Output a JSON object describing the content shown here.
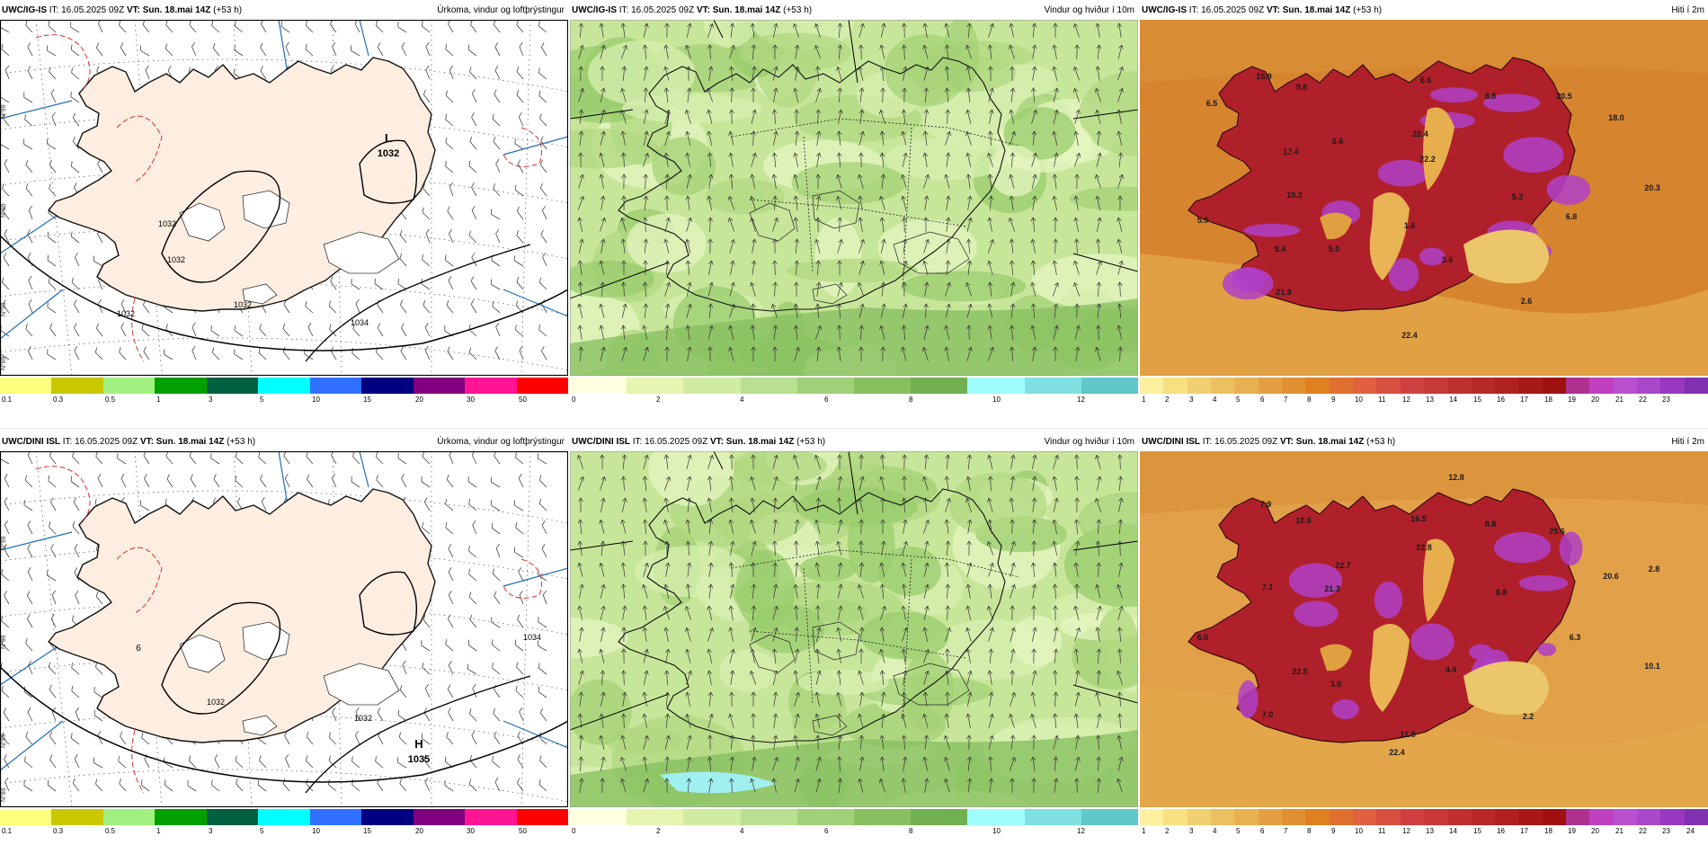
{
  "rows": [
    {
      "panels": [
        {
          "model": "UWC/IG-IS",
          "it": "IT: 16.05.2025 09Z",
          "vt_label": "VT:",
          "vt": "Sun. 18.mai 14Z",
          "lead": "(+53 h)",
          "title": "Úrkoma, vindur og loftþrýstingur",
          "kind": "precip",
          "labels": [
            {
              "t": "L"
            },
            {
              "t": "1032"
            },
            {
              "t": "1032"
            },
            {
              "t": "1032"
            },
            {
              "t": "1032"
            },
            {
              "t": "1034"
            },
            {
              "t": "1032"
            }
          ],
          "edge": [
            "N°99",
            "N°99",
            "N°99",
            "N°89"
          ]
        },
        {
          "model": "UWC/IG-IS",
          "it": "IT: 16.05.2025 09Z",
          "vt_label": "VT:",
          "vt": "Sun. 18.mai 14Z",
          "lead": "(+53 h)",
          "title": "Vindur og hviður í 10m",
          "kind": "wind",
          "labels": []
        },
        {
          "model": "UWC/IG-IS",
          "it": "IT: 16.05.2025 09Z",
          "vt_label": "VT:",
          "vt": "Sun. 18.mai 14Z",
          "lead": "(+53 h)",
          "title": "Hiti í 2m",
          "kind": "temp",
          "labels": [
            {
              "t": "6.5"
            },
            {
              "t": "15.9"
            },
            {
              "t": "9.8"
            },
            {
              "t": "6.6"
            },
            {
              "t": "8.8"
            },
            {
              "t": "20.5"
            },
            {
              "t": "18.0"
            },
            {
              "t": "22.4"
            },
            {
              "t": "6.6"
            },
            {
              "t": "22.2"
            },
            {
              "t": "17.4"
            },
            {
              "t": "15.2"
            },
            {
              "t": "5.3"
            },
            {
              "t": "20.3"
            },
            {
              "t": "5.9"
            },
            {
              "t": "1.6"
            },
            {
              "t": "6.8"
            },
            {
              "t": "8.4"
            },
            {
              "t": "5.0"
            },
            {
              "t": "3.6"
            },
            {
              "t": "21.9"
            },
            {
              "t": "2.6"
            },
            {
              "t": "22.4"
            }
          ]
        }
      ]
    },
    {
      "panels": [
        {
          "model": "UWC/DINI ISL",
          "it": "IT: 16.05.2025 09Z",
          "vt_label": "VT:",
          "vt": "Sun. 18.mai 14Z",
          "lead": "(+53 h)",
          "title": "Úrkoma, vindur og loftþrýstingur",
          "kind": "precip",
          "labels": [
            {
              "t": "H"
            },
            {
              "t": "1035"
            },
            {
              "t": "1032"
            },
            {
              "t": "1034"
            },
            {
              "t": "1032"
            },
            {
              "t": "6"
            }
          ],
          "edge": [
            "N°99",
            "N°99",
            "N°99",
            "N°89"
          ]
        },
        {
          "model": "UWC/DINI ISL",
          "it": "IT: 16.05.2025 09Z",
          "vt_label": "VT:",
          "vt": "Sun. 18.mai 14Z",
          "lead": "(+53 h)",
          "title": "Vindur og hviður í 10m",
          "kind": "wind",
          "labels": []
        },
        {
          "model": "UWC/DINI ISL",
          "it": "IT: 16.05.2025 09Z",
          "vt_label": "VT:",
          "vt": "Sun. 18.mai 14Z",
          "lead": "(+53 h)",
          "title": "Hiti í 2m",
          "kind": "temp",
          "labels": [
            {
              "t": "12.8"
            },
            {
              "t": "7.9"
            },
            {
              "t": "10.6"
            },
            {
              "t": "16.5"
            },
            {
              "t": "8.8"
            },
            {
              "t": "25.6"
            },
            {
              "t": "22.8"
            },
            {
              "t": "22.7"
            },
            {
              "t": "20.6"
            },
            {
              "t": "2.8"
            },
            {
              "t": "7.1"
            },
            {
              "t": "21.3"
            },
            {
              "t": "8.8"
            },
            {
              "t": "6.0"
            },
            {
              "t": "6.3"
            },
            {
              "t": "22.5"
            },
            {
              "t": "4.4"
            },
            {
              "t": "10.1"
            },
            {
              "t": "3.0"
            },
            {
              "t": "7.0"
            },
            {
              "t": "2.2"
            },
            {
              "t": "11.8"
            },
            {
              "t": "22.4"
            }
          ]
        }
      ]
    }
  ],
  "colorbars": {
    "precip": {
      "colors": [
        "#ffff80",
        "#c8c800",
        "#a0f080",
        "#00a000",
        "#006040",
        "#00ffff",
        "#3070ff",
        "#000080",
        "#800080",
        "#ff1493",
        "#ff0000"
      ],
      "ticks": [
        "0.1",
        "0.3",
        "0.5",
        "1",
        "3",
        "5",
        "10",
        "15",
        "20",
        "30",
        "50"
      ]
    },
    "wind": {
      "colors": [
        "#ffffe0",
        "#e6f5b0",
        "#d0eca0",
        "#b8e090",
        "#a0d078",
        "#88c060",
        "#70b050",
        "#9fffff",
        "#80e0e0",
        "#60c8c8"
      ],
      "ticks": [
        "0",
        "2",
        "4",
        "6",
        "8",
        "10",
        "12"
      ]
    },
    "temp": {
      "colors": [
        "#fff0a0",
        "#f8e080",
        "#f0d070",
        "#ecc060",
        "#e8b050",
        "#e4a040",
        "#e09030",
        "#e08020",
        "#e07030",
        "#e06040",
        "#d85040",
        "#d04040",
        "#c83838",
        "#c03030",
        "#b82828",
        "#b02020",
        "#a81818",
        "#a01010",
        "#b03090",
        "#c040c0",
        "#b850d0",
        "#a848c8",
        "#9838c0",
        "#8030b0"
      ],
      "ticks_top": [
        "1",
        "2",
        "3",
        "4",
        "5",
        "6",
        "7",
        "8",
        "9",
        "10",
        "11",
        "12",
        "13",
        "14",
        "15",
        "16",
        "17",
        "18",
        "19",
        "20",
        "21",
        "22",
        "23"
      ],
      "ticks_bottom": [
        "1",
        "2",
        "3",
        "4",
        "5",
        "6",
        "7",
        "8",
        "9",
        "10",
        "11",
        "12",
        "13",
        "14",
        "15",
        "16",
        "17",
        "18",
        "19",
        "20",
        "21",
        "22",
        "23",
        "24"
      ]
    }
  }
}
